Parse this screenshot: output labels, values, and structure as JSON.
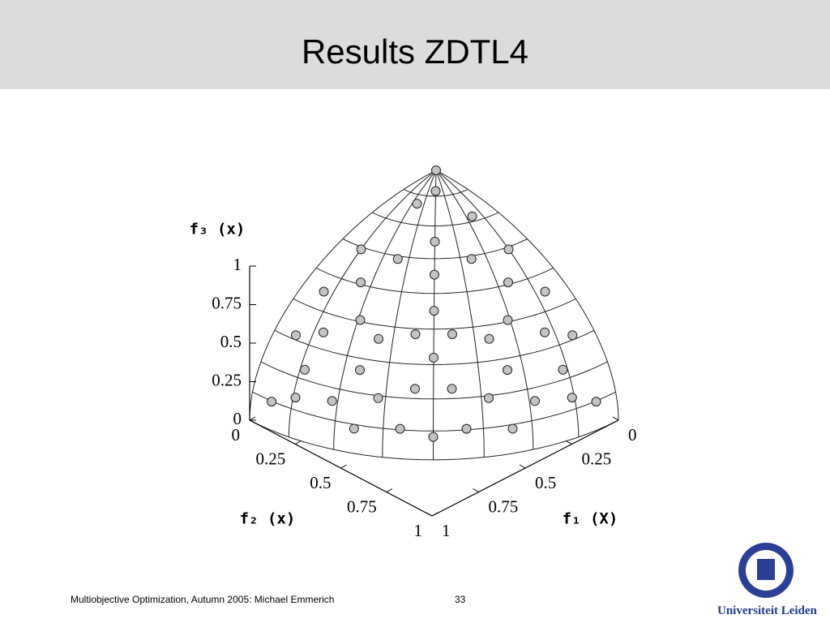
{
  "slide": {
    "title": "Results ZDTL4",
    "footer": "Multiobjective Optimization, Autumn 2005: Michael Emmerich",
    "page_number": 33,
    "logo_text": "Universiteit Leiden"
  },
  "chart_data": {
    "type": "scatter3d",
    "xlabel": "f₁ (X)",
    "ylabel": "f₂ (x)",
    "zlabel": "f₃ (x)",
    "xlim": [
      0,
      1
    ],
    "ylim": [
      0,
      1
    ],
    "zlim": [
      0,
      1
    ],
    "xticks": [
      0,
      0.25,
      0.5,
      0.75,
      1
    ],
    "yticks": [
      0,
      0.25,
      0.5,
      0.75,
      1
    ],
    "zticks": [
      0,
      0.25,
      0.5,
      0.75,
      1
    ],
    "color": "#c4c4c4",
    "x": [
      0,
      0.1,
      0.2,
      0.1,
      0.3,
      0.5,
      0.1,
      0.4,
      0.6,
      0.2,
      0.5,
      0.7,
      0.1,
      0.3,
      0.7,
      0.6,
      0.5,
      0.8,
      0.2,
      0.4,
      0.7,
      0.6,
      0.85,
      0.1,
      0.8,
      0.4,
      0.9,
      0.2,
      0.7,
      0.6,
      0.5,
      0.8,
      0.9,
      0.35,
      0.7,
      0.95,
      0.2,
      0.6,
      0.78,
      0.98,
      0.1,
      0.45,
      0.88,
      0.25,
      0.45
    ],
    "y": [
      0,
      0.1,
      0.1,
      0.3,
      0.3,
      0.1,
      0.5,
      0.4,
      0.2,
      0.6,
      0.5,
      0.1,
      0.7,
      0.7,
      0.3,
      0.5,
      0.6,
      0.2,
      0.8,
      0.7,
      0.4,
      0.6,
      0.1,
      0.85,
      0.4,
      0.8,
      0.2,
      0.9,
      0.6,
      0.7,
      0.8,
      0.5,
      0.35,
      0.9,
      0.7,
      0.2,
      0.95,
      0.78,
      0.6,
      0.1,
      0.98,
      0.88,
      0.45,
      0.45,
      0.25
    ],
    "z": [
      1,
      0.99,
      0.97,
      0.95,
      0.91,
      0.86,
      0.86,
      0.82,
      0.77,
      0.77,
      0.71,
      0.71,
      0.71,
      0.65,
      0.65,
      0.62,
      0.62,
      0.57,
      0.57,
      0.59,
      0.59,
      0.53,
      0.52,
      0.52,
      0.45,
      0.45,
      0.39,
      0.39,
      0.39,
      0.39,
      0.33,
      0.33,
      0.28,
      0.28,
      0.14,
      0.24,
      0.24,
      0.18,
      0.18,
      0.17,
      0.17,
      0.15,
      0.15,
      0.86,
      0.86
    ]
  }
}
